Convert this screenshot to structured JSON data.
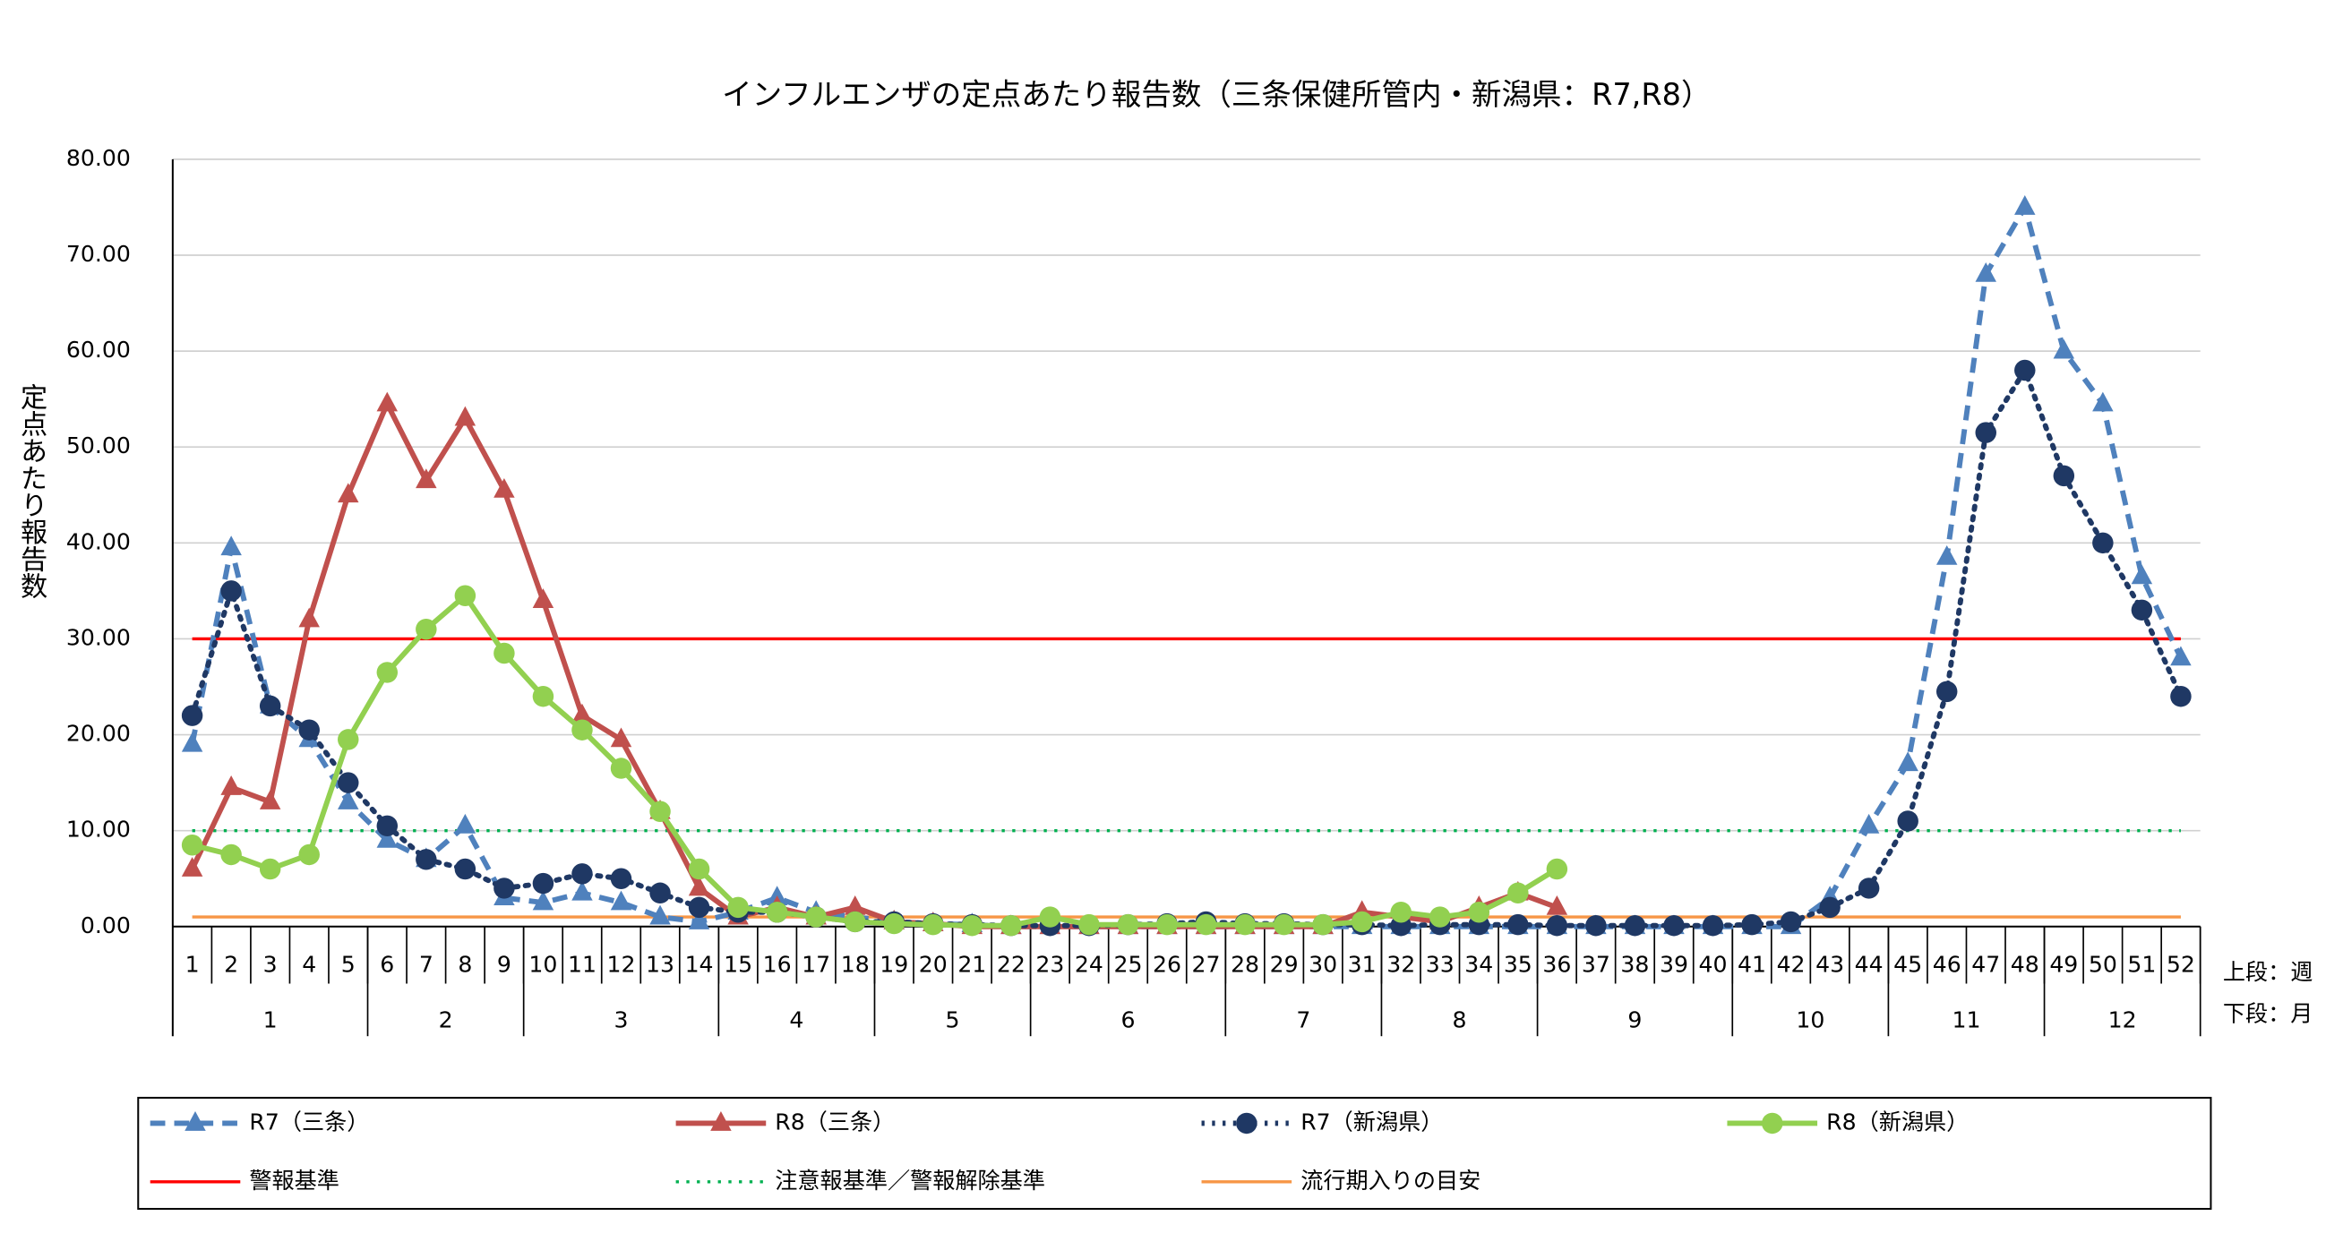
{
  "chart_data": {
    "type": "line",
    "title": "インフルエンザの定点あたり報告数（三条保健所管内・新潟県：R7,R8）",
    "y_label": "定点あたり報告数",
    "x_notes": [
      "上段：週",
      "下段：月"
    ],
    "categories": [
      "1",
      "2",
      "3",
      "4",
      "5",
      "6",
      "7",
      "8",
      "9",
      "10",
      "11",
      "12",
      "13",
      "14",
      "15",
      "16",
      "17",
      "18",
      "19",
      "20",
      "21",
      "22",
      "23",
      "24",
      "25",
      "26",
      "27",
      "28",
      "29",
      "30",
      "31",
      "32",
      "33",
      "34",
      "35",
      "36",
      "37",
      "38",
      "39",
      "40",
      "41",
      "42",
      "43",
      "44",
      "45",
      "46",
      "47",
      "48",
      "49",
      "50",
      "51",
      "52"
    ],
    "month_groups": [
      {
        "label": "1",
        "weeks": 5
      },
      {
        "label": "2",
        "weeks": 4
      },
      {
        "label": "3",
        "weeks": 5
      },
      {
        "label": "4",
        "weeks": 4
      },
      {
        "label": "5",
        "weeks": 4
      },
      {
        "label": "6",
        "weeks": 5
      },
      {
        "label": "7",
        "weeks": 4
      },
      {
        "label": "8",
        "weeks": 4
      },
      {
        "label": "9",
        "weeks": 5
      },
      {
        "label": "10",
        "weeks": 4
      },
      {
        "label": "11",
        "weeks": 4
      },
      {
        "label": "12",
        "weeks": 4
      }
    ],
    "ylim": [
      0,
      80
    ],
    "yticks": [
      {
        "value": 0,
        "label": "0.00"
      },
      {
        "value": 10,
        "label": "10.00"
      },
      {
        "value": 20,
        "label": "20.00"
      },
      {
        "value": 30,
        "label": "30.00"
      },
      {
        "value": 40,
        "label": "40.00"
      },
      {
        "value": 50,
        "label": "50.00"
      },
      {
        "value": 60,
        "label": "60.00"
      },
      {
        "value": 70,
        "label": "70.00"
      },
      {
        "value": 80,
        "label": "80.00"
      }
    ],
    "grid": true,
    "series": [
      {
        "name": "R7（三条）",
        "color": "#4f81bd",
        "marker": "triangle",
        "dash": "dashed",
        "values": [
          19,
          39.5,
          23,
          19.5,
          13,
          9,
          7,
          10.5,
          3,
          2.5,
          3.5,
          2.5,
          1,
          0.5,
          1.5,
          3,
          1.5,
          1,
          0.5,
          0.3,
          0.2,
          0,
          0,
          0,
          0,
          0,
          0,
          0,
          0,
          0,
          0,
          0,
          0,
          0,
          0,
          0,
          0,
          0,
          0,
          0,
          0,
          0,
          3,
          10.5,
          17,
          38.5,
          68,
          75,
          60,
          54.5,
          36.5,
          28
        ]
      },
      {
        "name": "R8（三条）",
        "color": "#c0504d",
        "marker": "triangle",
        "dash": "solid",
        "values": [
          6,
          14.5,
          13,
          32,
          45,
          54.5,
          46.5,
          53,
          45.5,
          34,
          22,
          19.5,
          12,
          4,
          1,
          2,
          1,
          2,
          0.5,
          0.3,
          0,
          0,
          0,
          0,
          0,
          0,
          0,
          0,
          0,
          0,
          1.5,
          1,
          0.5,
          2,
          3.5,
          2,
          null,
          null,
          null,
          null,
          null,
          null,
          null,
          null,
          null,
          null,
          null,
          null,
          null,
          null,
          null,
          null
        ]
      },
      {
        "name": "R7（新潟県）",
        "color": "#1f3864",
        "marker": "circle",
        "dash": "dotted",
        "values": [
          22,
          35,
          23,
          20.5,
          15,
          10.5,
          7,
          6,
          4,
          4.5,
          5.5,
          5,
          3.5,
          2,
          1.5,
          1.5,
          1,
          0.5,
          0.5,
          0.3,
          0.2,
          0.1,
          0.1,
          0.1,
          0.2,
          0.3,
          0.5,
          0.3,
          0.3,
          0.2,
          0.2,
          0.1,
          0.2,
          0.2,
          0.2,
          0.1,
          0.1,
          0.1,
          0.1,
          0.1,
          0.2,
          0.5,
          2,
          4,
          11,
          24.5,
          51.5,
          58,
          47,
          40,
          33,
          24
        ]
      },
      {
        "name": "R8（新潟県）",
        "color": "#92d050",
        "marker": "circle",
        "dash": "solid",
        "values": [
          8.5,
          7.5,
          6,
          7.5,
          19.5,
          26.5,
          31,
          34.5,
          28.5,
          24,
          20.5,
          16.5,
          12,
          6,
          2,
          1.5,
          1,
          0.5,
          0.3,
          0.2,
          0.1,
          0.1,
          1,
          0.2,
          0.2,
          0.2,
          0.2,
          0.2,
          0.2,
          0.2,
          0.5,
          1.5,
          1,
          1.5,
          3.5,
          6,
          null,
          null,
          null,
          null,
          null,
          null,
          null,
          null,
          null,
          null,
          null,
          null,
          null,
          null,
          null,
          null
        ]
      }
    ],
    "reference_lines": [
      {
        "name": "警報基準",
        "color": "#ff0000",
        "value": 30,
        "dash": "solid"
      },
      {
        "name": "注意報基準／警報解除基準",
        "color": "#00b050",
        "value": 10,
        "dash": "dotted"
      },
      {
        "name": "流行期入りの目安",
        "color": "#f79646",
        "value": 1,
        "dash": "solid"
      }
    ]
  }
}
